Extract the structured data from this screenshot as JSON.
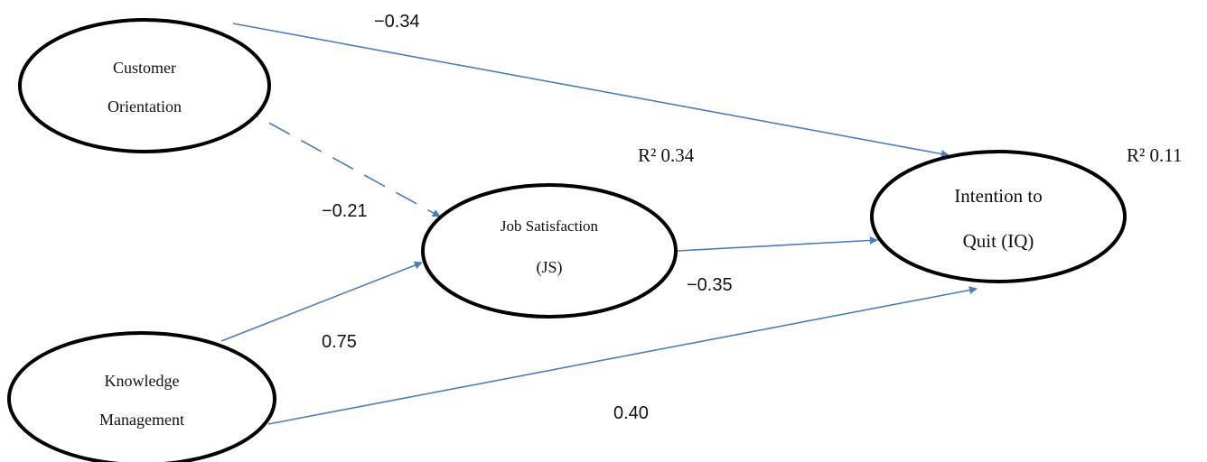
{
  "accent": "#4a7ebb",
  "nodes": {
    "customer_orientation": {
      "line1": "Customer",
      "line2": "Orientation"
    },
    "knowledge_management": {
      "line1": "Knowledge",
      "line2": "Management"
    },
    "job_satisfaction": {
      "line1": "Job Satisfaction",
      "line2": "(JS)",
      "r2": "R² 0.34"
    },
    "intention_to_quit": {
      "line1": "Intention to",
      "line2": "Quit (IQ)",
      "r2": "R² 0.11"
    }
  },
  "paths": {
    "co_to_iq": {
      "coefficient": "−0.34",
      "style": "solid"
    },
    "co_to_js": {
      "coefficient": "−0.21",
      "style": "dashed"
    },
    "km_to_js": {
      "coefficient": "0.75",
      "style": "solid"
    },
    "km_to_iq": {
      "coefficient": "0.40",
      "style": "solid"
    },
    "js_to_iq": {
      "coefficient": "−0.35",
      "style": "solid"
    }
  }
}
